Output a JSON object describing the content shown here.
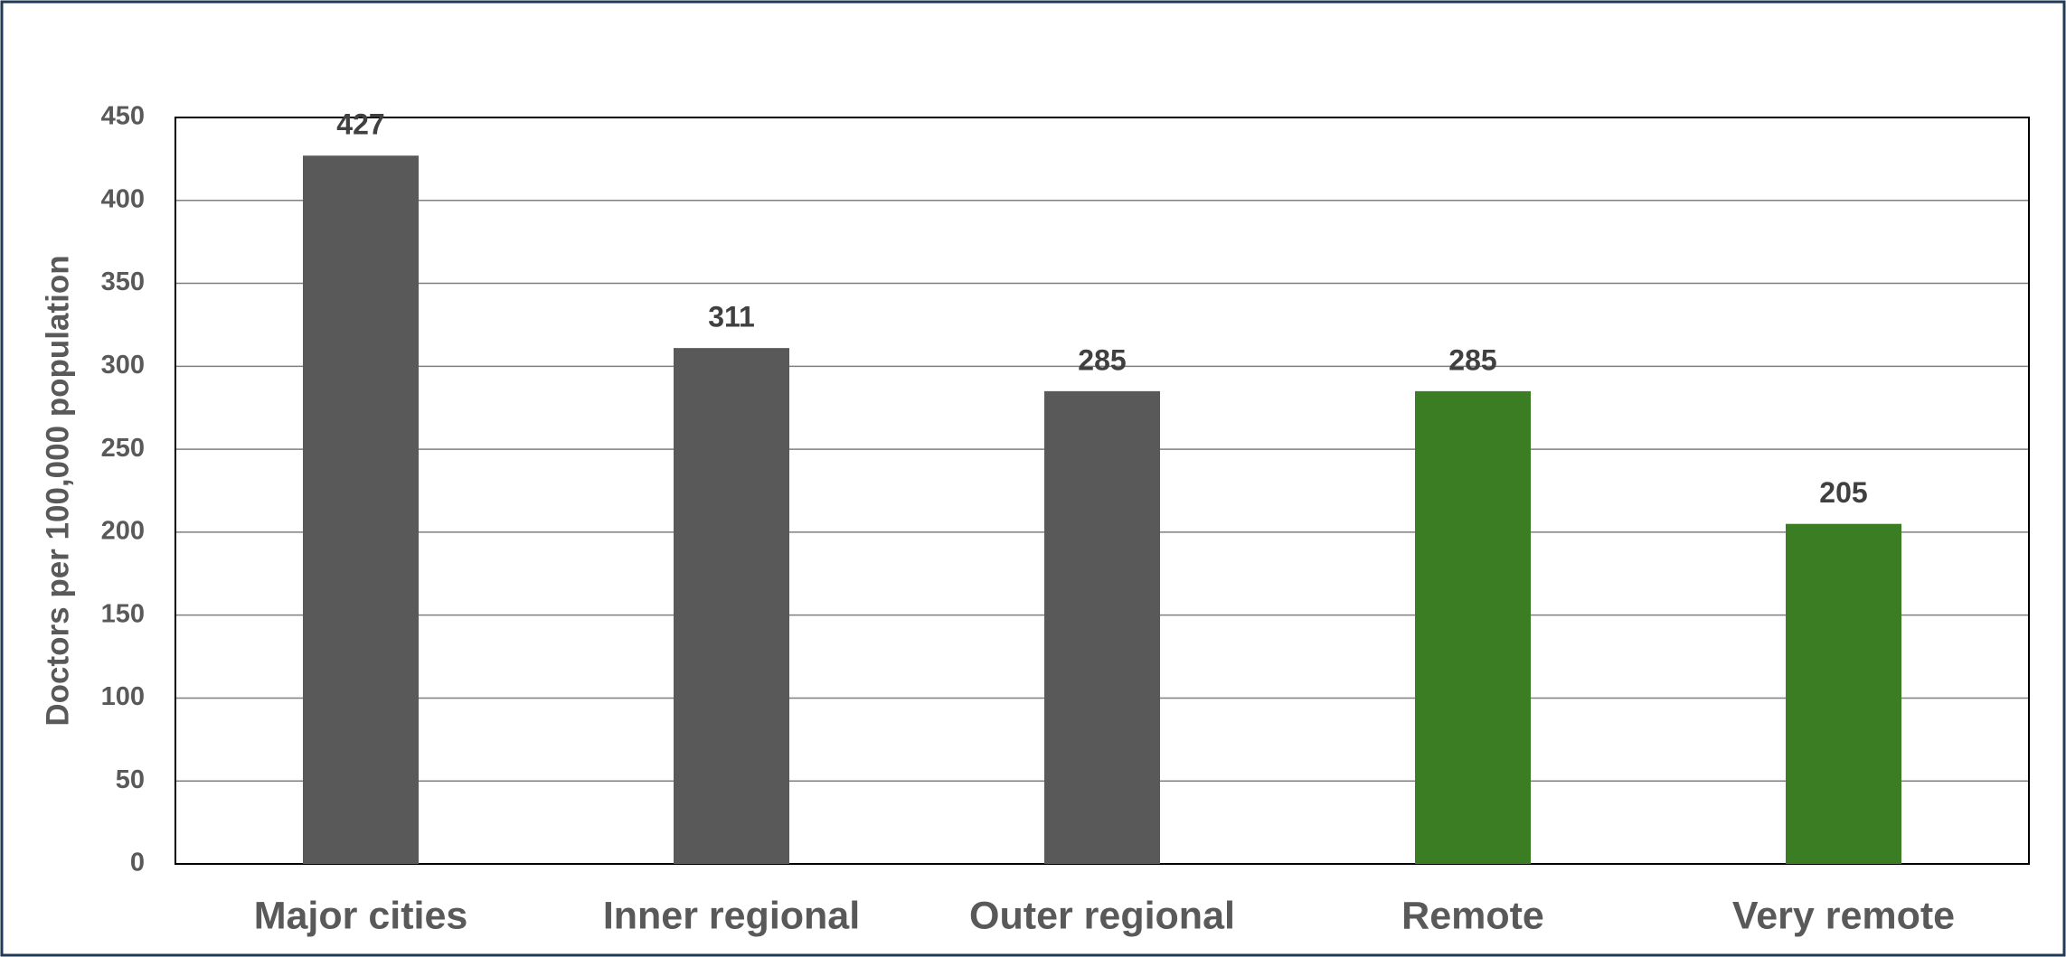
{
  "chart_data": {
    "type": "bar",
    "ylabel": "Doctors per 100,000 population",
    "categories": [
      "Major cities",
      "Inner regional",
      "Outer regional",
      "Remote",
      "Very remote"
    ],
    "values": [
      427,
      311,
      285,
      285,
      205
    ],
    "colors": [
      "#595959",
      "#595959",
      "#595959",
      "#3a7d22",
      "#3a7d22"
    ],
    "ylim": [
      0,
      450
    ],
    "yticks": [
      0,
      50,
      100,
      150,
      200,
      250,
      300,
      350,
      400,
      450
    ],
    "grid": true
  }
}
